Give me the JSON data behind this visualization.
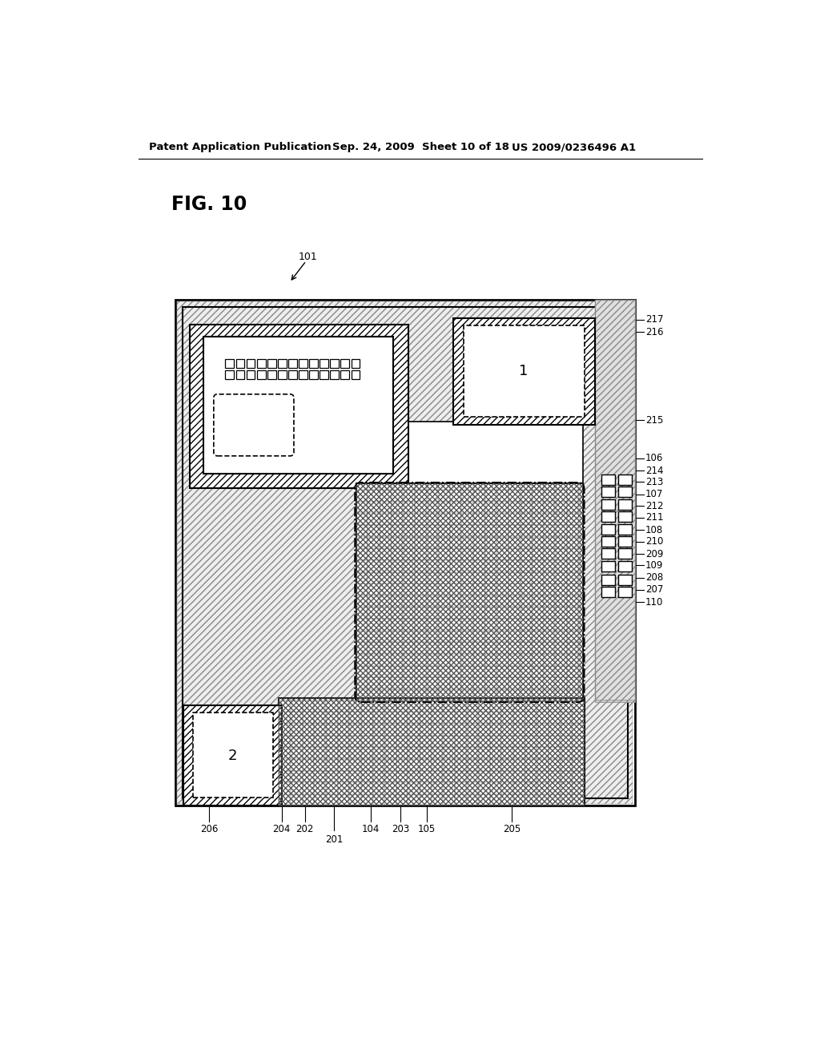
{
  "header_left": "Patent Application Publication",
  "header_center": "Sep. 24, 2009  Sheet 10 of 18",
  "header_right": "US 2009/0236496 A1",
  "fig_label": "FIG. 10",
  "background": "#ffffff"
}
